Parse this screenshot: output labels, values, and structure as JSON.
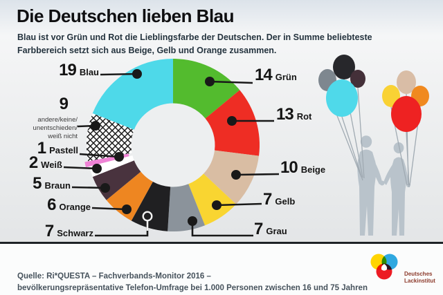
{
  "header": {
    "title": "Die Deutschen lieben Blau",
    "subtitle_line1": "Blau ist vor Grün und Rot die Lieblingsfarbe der Deutschen. Der in Summe beliebteste",
    "subtitle_line2": "Farbbereich setzt sich aus Beige, Gelb und Orange zusammen."
  },
  "chart_data": {
    "type": "donut",
    "title": "Die Deutschen lieben Blau",
    "start": "top",
    "direction": "clockwise",
    "values_are": "percent of 1000 respondents",
    "slices": [
      {
        "key": "gruen",
        "label": "Grün",
        "value": 14,
        "color": "#53bb2e"
      },
      {
        "key": "rot",
        "label": "Rot",
        "value": 13,
        "color": "#ee2d24"
      },
      {
        "key": "beige",
        "label": "Beige",
        "value": 10,
        "color": "#d9bda3"
      },
      {
        "key": "gelb",
        "label": "Gelb",
        "value": 7,
        "color": "#f9d531"
      },
      {
        "key": "grau",
        "label": "Grau",
        "value": 7,
        "color": "#8b939b"
      },
      {
        "key": "schwarz",
        "label": "Schwarz",
        "value": 7,
        "color": "#202022"
      },
      {
        "key": "orange",
        "label": "Orange",
        "value": 6,
        "color": "#ee8621"
      },
      {
        "key": "braun",
        "label": "Braun",
        "value": 5,
        "color": "#49333e"
      },
      {
        "key": "weiss",
        "label": "Weiß",
        "value": 2,
        "color": "#ffffff"
      },
      {
        "key": "pastell",
        "label": "Pastell",
        "value": 1,
        "color": "#ef82d5",
        "exploded": true
      },
      {
        "key": "andere",
        "label": "andere/keine/unentschieden/weiß nicht",
        "label_lines": [
          "andere/keine/",
          "unentschieden/",
          "weiß nicht"
        ],
        "value": 9,
        "pattern": "crosshatch",
        "color": "#ffffff"
      },
      {
        "key": "blau",
        "label": "Blau",
        "value": 19,
        "color": "#4ed9e9"
      }
    ]
  },
  "illustration": {
    "people_color": "#b9c3cb",
    "string_color": "#a0aab2",
    "left_balloons": [
      "#7e878f",
      "#27272b",
      "#443039",
      "#4fd9ea"
    ],
    "right_balloons": [
      "#f9d234",
      "#d9bda6",
      "#f0891f",
      "#ee2222"
    ]
  },
  "footer": {
    "source_line1": "Quelle: Ri*QUESTA – Fachverbands-Monitor 2016 –",
    "source_line2": "bevölkerungsrepräsentative Telefon-Umfrage bei 1.000 Personen zwischen 16 und 75 Jahren",
    "logo": {
      "line1": "Deutsches",
      "line2": "Lackinstitut",
      "circle_colors": [
        "#ffd401",
        "#2fa8e0",
        "#ec1b23"
      ],
      "text_color": "#8c3a2b"
    }
  }
}
